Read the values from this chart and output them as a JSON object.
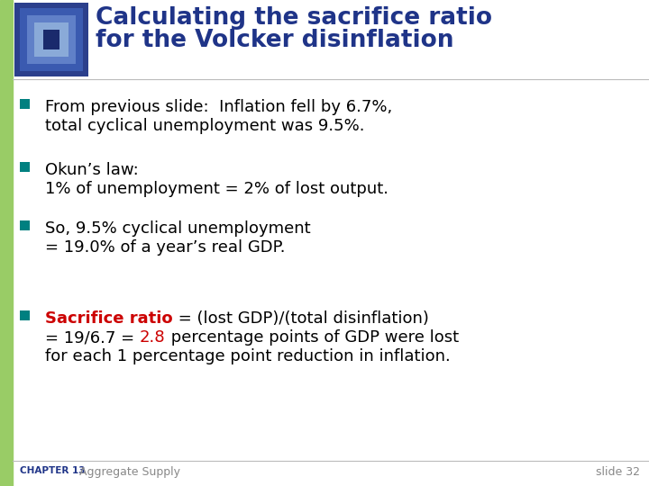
{
  "title_line1": "Calculating the sacrifice ratio",
  "title_line2": "for the Volcker disinflation",
  "title_color": "#1F3488",
  "background_color": "#FFFFFF",
  "left_bar_color": "#99CC66",
  "bullet_color": "#008080",
  "bullet_points": [
    {
      "lines": [
        {
          "text": "From previous slide:  Inflation fell by 6.7%,",
          "color": "#000000",
          "bold": false
        },
        {
          "text": "total cyclical unemployment was 9.5%.",
          "color": "#000000",
          "bold": false
        }
      ]
    },
    {
      "lines": [
        {
          "text": "Okun’s law:",
          "color": "#000000",
          "bold": false
        },
        {
          "text": "1% of unemployment = 2% of lost output.",
          "color": "#000000",
          "bold": false
        }
      ]
    },
    {
      "lines": [
        {
          "text": "So, 9.5% cyclical unemployment",
          "color": "#000000",
          "bold": false
        },
        {
          "text": "= 19.0% of a year’s real GDP.",
          "color": "#000000",
          "bold": false
        }
      ]
    },
    {
      "lines": [
        {
          "segments": [
            {
              "text": "Sacrifice ratio",
              "color": "#CC0000",
              "bold": true
            },
            {
              "text": " = (lost GDP)/(total disinflation)",
              "color": "#000000",
              "bold": false
            }
          ]
        },
        {
          "segments": [
            {
              "text": "= 19/6.7 = ",
              "color": "#000000",
              "bold": false
            },
            {
              "text": "2.8",
              "color": "#CC0000",
              "bold": false
            },
            {
              "text": " percentage points of GDP were lost",
              "color": "#000000",
              "bold": false
            }
          ]
        },
        {
          "text": "for each 1 percentage point reduction in inflation.",
          "color": "#000000",
          "bold": false
        }
      ]
    }
  ],
  "footer_chapter": "CHAPTER 13",
  "footer_title": "Aggregate Supply",
  "footer_slide": "slide 32",
  "footer_chapter_color": "#1F3488",
  "footer_title_color": "#888888",
  "footer_slide_color": "#888888",
  "icon_colors": {
    "outer": "#2B3F8C",
    "mid1": "#3A5AB0",
    "mid2": "#6080C8",
    "inner": "#8AAAD8",
    "center": "#1A2A6C"
  }
}
